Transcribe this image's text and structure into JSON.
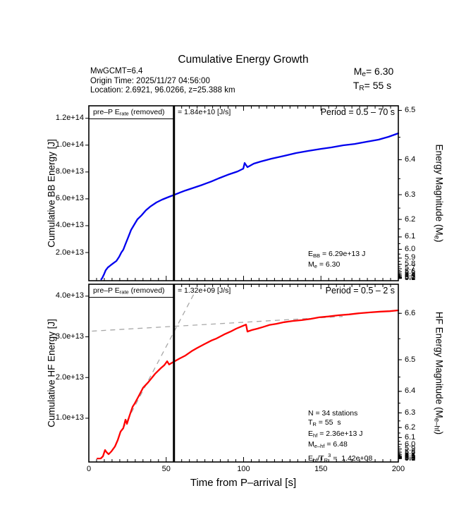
{
  "title": "Cumulative Energy Growth",
  "header": {
    "mw_line": "MwGCMT=6.4",
    "origin_line": "Origin Time: 2025/11/27 04:56:00",
    "location_line": "Location: 2.6921, 96.0266, z=25.388 km",
    "me_rich": [
      [
        "M"
      ],
      [
        "e",
        "sub"
      ],
      [
        "= 6.30"
      ]
    ],
    "tr_rich": [
      [
        "T"
      ],
      [
        "R",
        "sub"
      ],
      [
        "= 55 s"
      ]
    ]
  },
  "xaxis": {
    "label": "Time from P–arrival [s]"
  },
  "labels": {
    "bb": {
      "prep_label": [
        [
          "pre–P E"
        ],
        [
          "rate",
          "sub"
        ],
        [
          " (removed)"
        ]
      ],
      "prep_value": "= 1.84e+10 [J/s]",
      "period": "Period = 0.5 – 70 s",
      "ylabel": "Cumulative BB Energy [J]",
      "y2label_rich": [
        [
          "Energy Magnitude (M"
        ],
        [
          "e",
          "sub"
        ],
        [
          ")"
        ]
      ],
      "ann_lines": [
        [
          [
            "E"
          ],
          [
            "BB",
            "sub"
          ],
          [
            " = 6.29e+13 J"
          ]
        ],
        [
          [
            "M"
          ],
          [
            "e",
            "sub"
          ],
          [
            " = 6.30"
          ]
        ]
      ]
    },
    "hf": {
      "prep_label": [
        [
          "pre–P E"
        ],
        [
          "rate",
          "sub"
        ],
        [
          " (removed)"
        ]
      ],
      "prep_value": "= 1.32e+09 [J/s]",
      "period": "Period = 0.5 – 2 s",
      "ylabel": "Cumulative HF Energy [J]",
      "y2label_rich": [
        [
          "HF Energy Magnitude (M"
        ],
        [
          "e–hf",
          "sub"
        ],
        [
          ")"
        ]
      ],
      "ann_lines": [
        [
          [
            "N = 34 stations"
          ]
        ],
        [
          [
            "T"
          ],
          [
            "R",
            "sub"
          ],
          [
            " = 55  s"
          ]
        ],
        [
          [
            "E"
          ],
          [
            "hf",
            "sub"
          ],
          [
            " = 2.36e+13 J"
          ]
        ],
        [
          [
            "M"
          ],
          [
            "e–hf",
            "sub"
          ],
          [
            " = 6.48"
          ]
        ],
        [
          [
            "E"
          ],
          [
            "hf",
            "sub"
          ],
          [
            "/T"
          ],
          [
            "R",
            "sub"
          ],
          [
            "3",
            "sup"
          ],
          [
            " =  1.42e+08"
          ]
        ]
      ]
    }
  },
  "chart_data": [
    {
      "id": "bb",
      "type": "line",
      "title": "Cumulative BB Energy",
      "xlabel": "Time from P–arrival [s]",
      "ylabel": "Cumulative BB Energy [J]",
      "y2label": "Energy Magnitude (Me)",
      "period_band": "0.5 - 70 s",
      "pre_p_rate_removed_J_per_s": 18400000000.0,
      "E_BB_J": 62900000000000.0,
      "Me": 6.3,
      "tr_marker_s": 55,
      "xlim": [
        0,
        200
      ],
      "ylim": [
        -1000000000000.0,
        129300000000000.0
      ],
      "x_major_ticks": [
        0,
        50,
        100,
        150,
        200
      ],
      "x_minor_step": 5,
      "y_ticks": [
        {
          "label": "2.0e+13",
          "value": 20000000000000.0
        },
        {
          "label": "4.0e+13",
          "value": 40000000000000.0
        },
        {
          "label": "6.0e+13",
          "value": 60000000000000.0
        },
        {
          "label": "8.0e+13",
          "value": 80000000000000.0
        },
        {
          "label": "1.0e+14",
          "value": 100000000000000.0
        },
        {
          "label": "1.2e+14",
          "value": 120000000000000.0
        }
      ],
      "y2_mag": {
        "coef": 1.5,
        "offset": 2.9,
        "labels": [
          6.5,
          6.4,
          6.3,
          6.2,
          6.1,
          6.0,
          5.9,
          5.8,
          5.7,
          5.6,
          5.5,
          5.4,
          5.3,
          5.2,
          5.1,
          5.0
        ],
        "minor_step": 0.05
      },
      "series": [
        {
          "name": "cumulative-bb-energy",
          "color": "#0000ee",
          "width": 2.3,
          "points": [
            [
              8.0,
              0
            ],
            [
              8.7,
              1100000000000.0
            ],
            [
              10.0,
              4200000000000.0
            ],
            [
              10.9,
              6800000000000.0
            ],
            [
              12.3,
              8900000000000.0
            ],
            [
              14.1,
              10500000000000.0
            ],
            [
              15.9,
              12100000000000.0
            ],
            [
              17.8,
              13700000000000.0
            ],
            [
              19.6,
              16800000000000.0
            ],
            [
              21.0,
              20000000000000.0
            ],
            [
              22.3,
              22100000000000.0
            ],
            [
              23.7,
              26300000000000.0
            ],
            [
              25.5,
              31500000000000.0
            ],
            [
              27.3,
              36800000000000.0
            ],
            [
              29.2,
              40500000000000.0
            ],
            [
              31.4,
              44700000000000.0
            ],
            [
              33.7,
              47300000000000.0
            ],
            [
              36.9,
              51500000000000.0
            ],
            [
              39.6,
              54100000000000.0
            ],
            [
              43.7,
              57300000000000.0
            ],
            [
              47.4,
              59400000000000.0
            ],
            [
              51.9,
              61500000000000.0
            ],
            [
              55.0,
              62900000000000.0
            ],
            [
              58.8,
              64600000000000.0
            ],
            [
              62.4,
              66200000000000.0
            ],
            [
              67.9,
              68300000000000.0
            ],
            [
              73.3,
              70400000000000.0
            ],
            [
              79.3,
              73000000000000.0
            ],
            [
              83.8,
              75200000000000.0
            ],
            [
              90.7,
              78300000000000.0
            ],
            [
              96.1,
              80400000000000.0
            ],
            [
              99.8,
              82500000000000.0
            ],
            [
              100.7,
              86700000000000.0
            ],
            [
              102.5,
              83600000000000.0
            ],
            [
              106.6,
              86200000000000.0
            ],
            [
              111.1,
              87800000000000.0
            ],
            [
              118.0,
              89900000000000.0
            ],
            [
              126.2,
              92000000000000.0
            ],
            [
              133.9,
              94100000000000.0
            ],
            [
              141.7,
              95700000000000.0
            ],
            [
              149.9,
              97200000000000.0
            ],
            [
              156.7,
              98300000000000.0
            ],
            [
              164.4,
              99900000000000.0
            ],
            [
              171.8,
              100900000000000.0
            ],
            [
              179.5,
              102500000000000.0
            ],
            [
              187.2,
              104100000000000.0
            ],
            [
              193.6,
              106200000000000.0
            ],
            [
              200.0,
              108800000000000.0
            ]
          ]
        }
      ]
    },
    {
      "id": "hf",
      "type": "line",
      "title": "Cumulative HF Energy",
      "xlabel": "Time from P–arrival [s]",
      "ylabel": "Cumulative HF Energy [J]",
      "y2label": "HF Energy Magnitude (Me-hf)",
      "period_band": "0.5 - 2 s",
      "pre_p_rate_removed_J_per_s": 1320000000.0,
      "N_stations": 34,
      "TR_s": 55,
      "E_hf_J": 23600000000000.0,
      "Me_hf": 6.48,
      "Ehf_over_TR3": 142000000.0,
      "tr_marker_s": 55,
      "xlim": [
        0,
        200
      ],
      "ylim": [
        -750000000000.0,
        42920000000000.0
      ],
      "x_major_ticks": [
        0,
        50,
        100,
        150,
        200
      ],
      "x_minor_step": 5,
      "y_ticks": [
        {
          "label": "1.0e+13",
          "value": 10000000000000.0
        },
        {
          "label": "2.0e+13",
          "value": 20000000000000.0
        },
        {
          "label": "3.0e+13",
          "value": 30000000000000.0
        },
        {
          "label": "4.0e+13",
          "value": 40000000000000.0
        }
      ],
      "y2_mag": {
        "coef": 1.6667,
        "offset": 1.532,
        "labels": [
          6.6,
          6.5,
          6.4,
          6.3,
          6.2,
          6.1,
          6.0,
          5.9,
          5.8,
          5.7,
          5.6,
          5.5,
          5.4,
          5.3,
          5.2,
          5.1,
          5.0
        ],
        "minor_step": 0.05
      },
      "fit_lines": [
        {
          "name": "steep-rate-fit",
          "points": [
            [
              22,
              7400000000000.0
            ],
            [
              68,
              40600000000000.0
            ]
          ]
        },
        {
          "name": "plateau-rate-fit",
          "points": [
            [
              2,
              31400000000000.0
            ],
            [
              164,
              35000000000000.0
            ]
          ]
        }
      ],
      "series": [
        {
          "name": "cumulative-hf-energy",
          "color": "#ff0000",
          "width": 2.3,
          "points": [
            [
              5.5,
              100000000000.0
            ],
            [
              7.7,
              120000000000.0
            ],
            [
              9.1,
              640000000000.0
            ],
            [
              10.5,
              2200000000000.0
            ],
            [
              11.4,
              1680000000000.0
            ],
            [
              12.8,
              1160000000000.0
            ],
            [
              14.6,
              1850000000000.0
            ],
            [
              16.9,
              3070000000000.0
            ],
            [
              18.7,
              4630000000000.0
            ],
            [
              20.5,
              6710000000000.0
            ],
            [
              22.3,
              7570000000000.0
            ],
            [
              23.7,
              9650000000000.0
            ],
            [
              24.6,
              8610000000000.0
            ],
            [
              26.4,
              10700000000000.0
            ],
            [
              28.3,
              12800000000000.0
            ],
            [
              29.6,
              13600000000000.0
            ],
            [
              31.9,
              15200000000000.0
            ],
            [
              35.1,
              17500000000000.0
            ],
            [
              38.3,
              18800000000000.0
            ],
            [
              42.8,
              20900000000000.0
            ],
            [
              46.5,
              22300000000000.0
            ],
            [
              48.7,
              23000000000000.0
            ],
            [
              50.6,
              24000000000000.0
            ],
            [
              51.9,
              23200000000000.0
            ],
            [
              55.0,
              23900000000000.0
            ],
            [
              58.8,
              24700000000000.0
            ],
            [
              62.4,
              25400000000000.0
            ],
            [
              66.5,
              26500000000000.0
            ],
            [
              70.2,
              27300000000000.0
            ],
            [
              74.7,
              28200000000000.0
            ],
            [
              79.3,
              29100000000000.0
            ],
            [
              82.5,
              29600000000000.0
            ],
            [
              87.5,
              30600000000000.0
            ],
            [
              91.6,
              31300000000000.0
            ],
            [
              95.2,
              32000000000000.0
            ],
            [
              98.4,
              32500000000000.0
            ],
            [
              101.6,
              33000000000000.0
            ],
            [
              102.5,
              31300000000000.0
            ],
            [
              105.7,
              31700000000000.0
            ],
            [
              108.9,
              32000000000000.0
            ],
            [
              112.5,
              32400000000000.0
            ],
            [
              116.6,
              32900000000000.0
            ],
            [
              121.2,
              33200000000000.0
            ],
            [
              126.2,
              33600000000000.0
            ],
            [
              131.6,
              33900000000000.0
            ],
            [
              137.6,
              34100000000000.0
            ],
            [
              143.1,
              34400000000000.0
            ],
            [
              148.9,
              34800000000000.0
            ],
            [
              154.9,
              35000000000000.0
            ],
            [
              161.2,
              35300000000000.0
            ],
            [
              168.1,
              35500000000000.0
            ],
            [
              174.9,
              35800000000000.0
            ],
            [
              181.8,
              36000000000000.0
            ],
            [
              188.6,
              36200000000000.0
            ],
            [
              194.5,
              36300000000000.0
            ],
            [
              200.0,
              36500000000000.0
            ]
          ]
        }
      ]
    }
  ]
}
